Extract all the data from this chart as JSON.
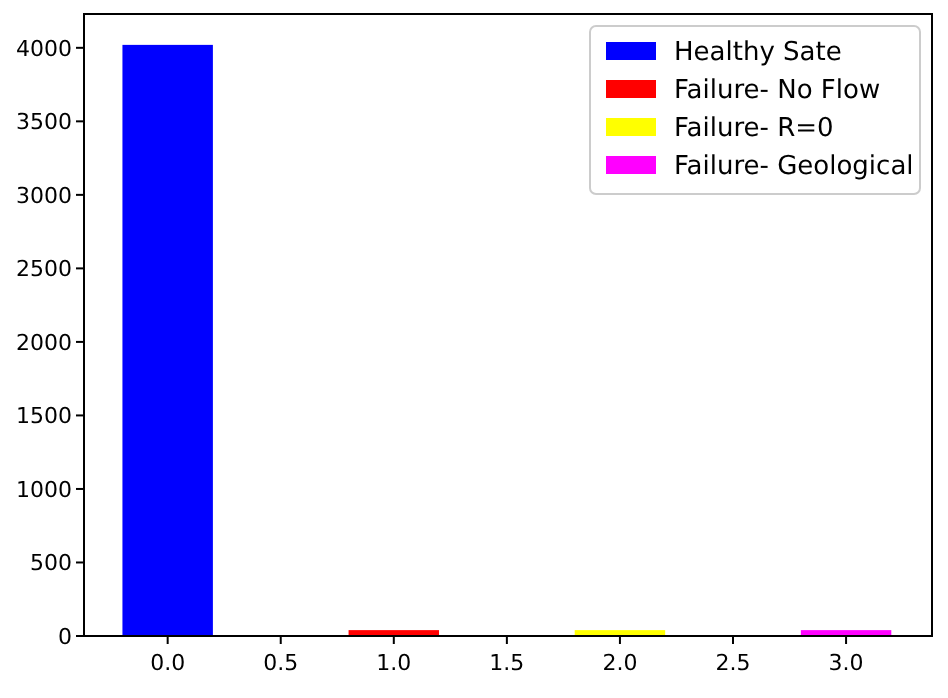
{
  "chart_data": {
    "type": "bar",
    "xlim": [
      -0.37,
      3.38
    ],
    "xticks": [
      {
        "value": 0,
        "label": "0.0"
      },
      {
        "value": 0.5,
        "label": "0.5"
      },
      {
        "value": 1,
        "label": "1.0"
      },
      {
        "value": 1.5,
        "label": "1.5"
      },
      {
        "value": 2,
        "label": "2.0"
      },
      {
        "value": 2.5,
        "label": "2.5"
      },
      {
        "value": 3,
        "label": "3.0"
      }
    ],
    "ylim": [
      0,
      4230
    ],
    "yticks": [
      0,
      500,
      1000,
      1500,
      2000,
      2500,
      3000,
      3500,
      4000
    ],
    "legend": "top right",
    "series": [
      {
        "name": "Healthy Sate",
        "color": "#0000ff",
        "x": [
          0
        ],
        "values": [
          4020
        ]
      },
      {
        "name": "Failure- No Flow",
        "color": "#ff0000",
        "x": [
          1
        ],
        "values": [
          40
        ]
      },
      {
        "name": "Failure- R=0",
        "color": "#ffff00",
        "x": [
          2
        ],
        "values": [
          40
        ]
      },
      {
        "name": "Failure- Geological",
        "color": "#ff00ff",
        "x": [
          3
        ],
        "values": [
          40
        ]
      }
    ]
  }
}
